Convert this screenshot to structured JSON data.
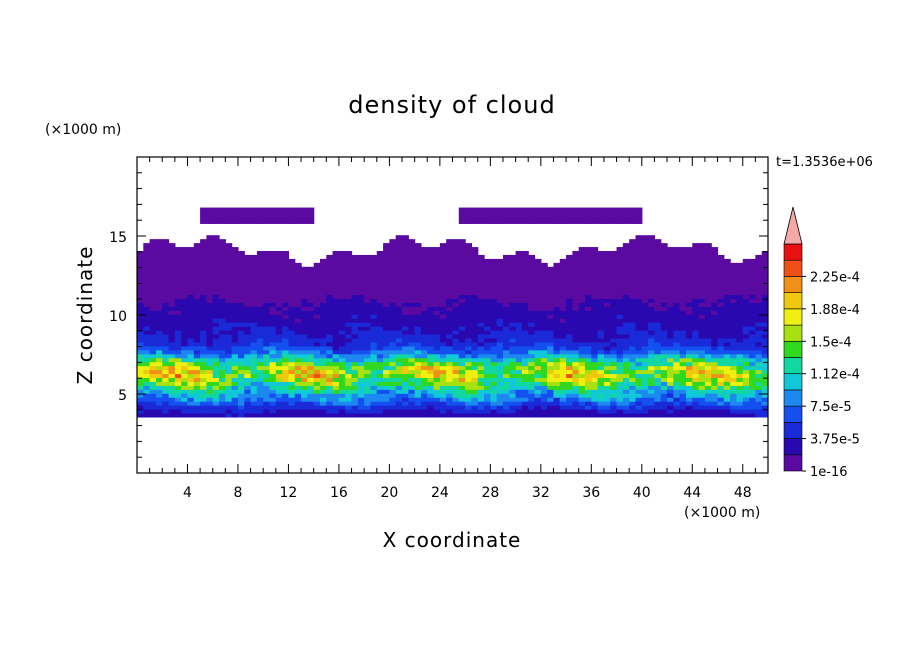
{
  "chart_data": {
    "type": "heatmap",
    "title": "density of cloud",
    "xlabel": "X coordinate",
    "ylabel": "Z coordinate",
    "x_unit": "(×1000 m)",
    "y_unit": "(×1000 m)",
    "time_label": "t=1.3536e+06",
    "xlim": [
      0,
      50
    ],
    "ylim": [
      0,
      20
    ],
    "x_ticks": [
      4,
      8,
      12,
      16,
      20,
      24,
      28,
      32,
      36,
      40,
      44,
      48
    ],
    "y_ticks": [
      5,
      10,
      15
    ],
    "colorbar": {
      "labels": [
        "1e-16",
        "3.75e-5",
        "7.5e-5",
        "1.12e-4",
        "1.5e-4",
        "1.88e-4",
        "2.25e-4"
      ],
      "levels": [
        1e-16,
        1.875e-05,
        3.75e-05,
        5.625e-05,
        7.5e-05,
        9.375e-05,
        0.0001125,
        0.00013125,
        0.00015,
        0.00016875,
        0.0001875,
        0.00020625,
        0.000225,
        0.00024375
      ],
      "colors": [
        "#5a0aa0",
        "#2a08b0",
        "#1a2ad8",
        "#1450f0",
        "#1c88f0",
        "#10c8d8",
        "#10d8a0",
        "#30d820",
        "#a8e010",
        "#f0f010",
        "#f0c810",
        "#f09018",
        "#f05018",
        "#e81010"
      ],
      "extend_color": "#f4a8a8",
      "extend": "max"
    },
    "profile": {
      "z": [
        3.5,
        4.0,
        4.5,
        5.0,
        5.5,
        6.0,
        6.5,
        7.0,
        7.5,
        8.0,
        8.5,
        9.0,
        9.5,
        10.0,
        10.5,
        11.0,
        11.5,
        12.0,
        13.0,
        14.0,
        14.5,
        16.0,
        17.0
      ],
      "density": [
        2.6e-05,
        4.5e-05,
        7.5e-05,
        0.0001,
        0.000135,
        0.000165,
        0.00016,
        0.00012,
        7.5e-05,
        5e-05,
        4e-05,
        3.5e-05,
        3e-05,
        2.6e-05,
        2e-05,
        1.6e-05,
        1e-05,
        8e-06,
        5e-06,
        3e-06,
        0,
        2e-06,
        0
      ]
    }
  }
}
